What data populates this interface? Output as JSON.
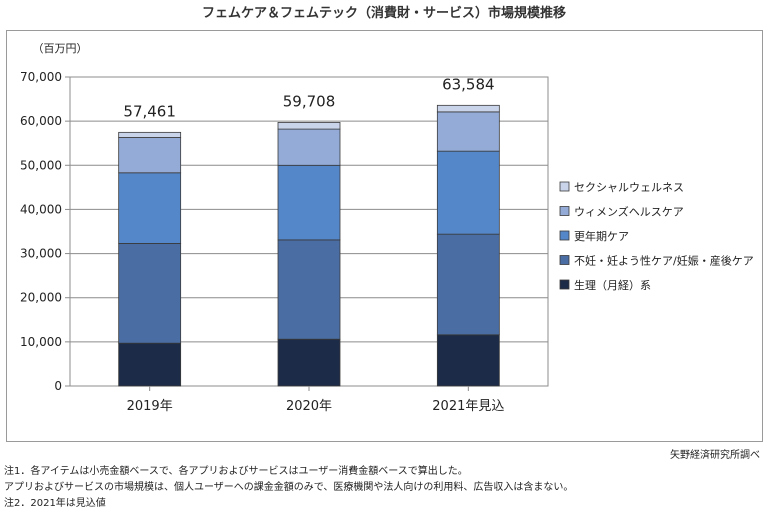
{
  "title": "フェムケア＆フェムテック（消費財・サービス）市場規模推移",
  "source": "矢野経済研究所調べ",
  "notes": [
    "注1．各アイテムは小売金額ベースで、各アプリおよびサービスはユーザー消費金額ベースで算出した。",
    "アプリおよびサービスの市場規模は、個人ユーザーへの課金金額のみで、医療機関や法人向けの利用料、広告収入は含まない。",
    "注2．2021年は見込値"
  ],
  "chart_data": {
    "type": "bar",
    "stacked": true,
    "title": "フェムケア＆フェムテック（消費財・サービス）市場規模推移",
    "unit_label": "（百万円）",
    "categories": [
      "2019年",
      "2020年",
      "2021年見込"
    ],
    "totals": [
      57461,
      59708,
      63584
    ],
    "total_labels": [
      "57,461",
      "59,708",
      "63,584"
    ],
    "ylim": [
      0,
      70000
    ],
    "yticks": [
      0,
      10000,
      20000,
      30000,
      40000,
      50000,
      60000,
      70000
    ],
    "ytick_labels": [
      "0",
      "10,000",
      "20,000",
      "30,000",
      "40,000",
      "50,000",
      "60,000",
      "70,000"
    ],
    "grid": true,
    "legend_position": "right",
    "series": [
      {
        "name": "生理（月経）系",
        "color": "#1c2b47",
        "values": [
          9700,
          10600,
          11600
        ]
      },
      {
        "name": "不妊・妊よう性ケア/妊娠・産後ケア",
        "color": "#4a6da3",
        "values": [
          22600,
          22500,
          22800
        ]
      },
      {
        "name": "更年期ケア",
        "color": "#5487c9",
        "values": [
          16000,
          16900,
          18800
        ]
      },
      {
        "name": "ウィメンズヘルスケア",
        "color": "#93abd6",
        "values": [
          8000,
          8200,
          8900
        ]
      },
      {
        "name": "セクシャルウェルネス",
        "color": "#c9d4ea",
        "values": [
          1161,
          1508,
          1484
        ]
      }
    ]
  }
}
